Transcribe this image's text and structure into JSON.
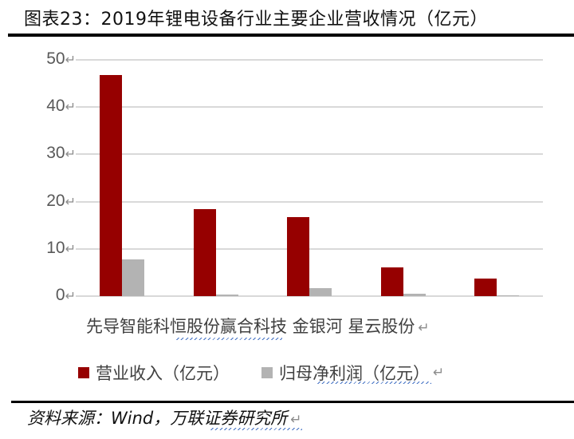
{
  "title": "图表23：2019年锂电设备行业主要企业营收情况（亿元）",
  "source": "资料来源：Wind，万联证券研究所",
  "return_mark": "↵",
  "colors": {
    "revenue": "#960000",
    "net_profit": "#b3b3b3",
    "gridline": "#d9d9d9",
    "axis_text": "#595959"
  },
  "legend": [
    {
      "label": "营业收入（亿元）",
      "color": "#960000"
    },
    {
      "label": "归母净利润（亿元）",
      "color": "#b3b3b3"
    }
  ],
  "y_ticks": [
    "50",
    "40",
    "30",
    "20",
    "10",
    "0"
  ],
  "categories_label": "先导智能科恒股份赢合科技 金银河 星云股份",
  "chart_data": {
    "type": "bar",
    "title": "图表23：2019年锂电设备行业主要企业营收情况（亿元）",
    "xlabel": "",
    "ylabel": "",
    "ylim": [
      0,
      50
    ],
    "yticks": [
      0,
      10,
      20,
      30,
      40,
      50
    ],
    "grid": true,
    "legend_position": "bottom",
    "categories": [
      "先导智能",
      "科恒股份",
      "赢合科技",
      "金银河",
      "星云股份"
    ],
    "series": [
      {
        "name": "营业收入（亿元）",
        "color": "#960000",
        "values": [
          46.8,
          18.4,
          16.8,
          6.1,
          3.7
        ]
      },
      {
        "name": "归母净利润（亿元）",
        "color": "#b3b3b3",
        "values": [
          7.7,
          0.3,
          1.7,
          0.5,
          0.2
        ]
      }
    ],
    "source": "资料来源：Wind，万联证券研究所"
  }
}
